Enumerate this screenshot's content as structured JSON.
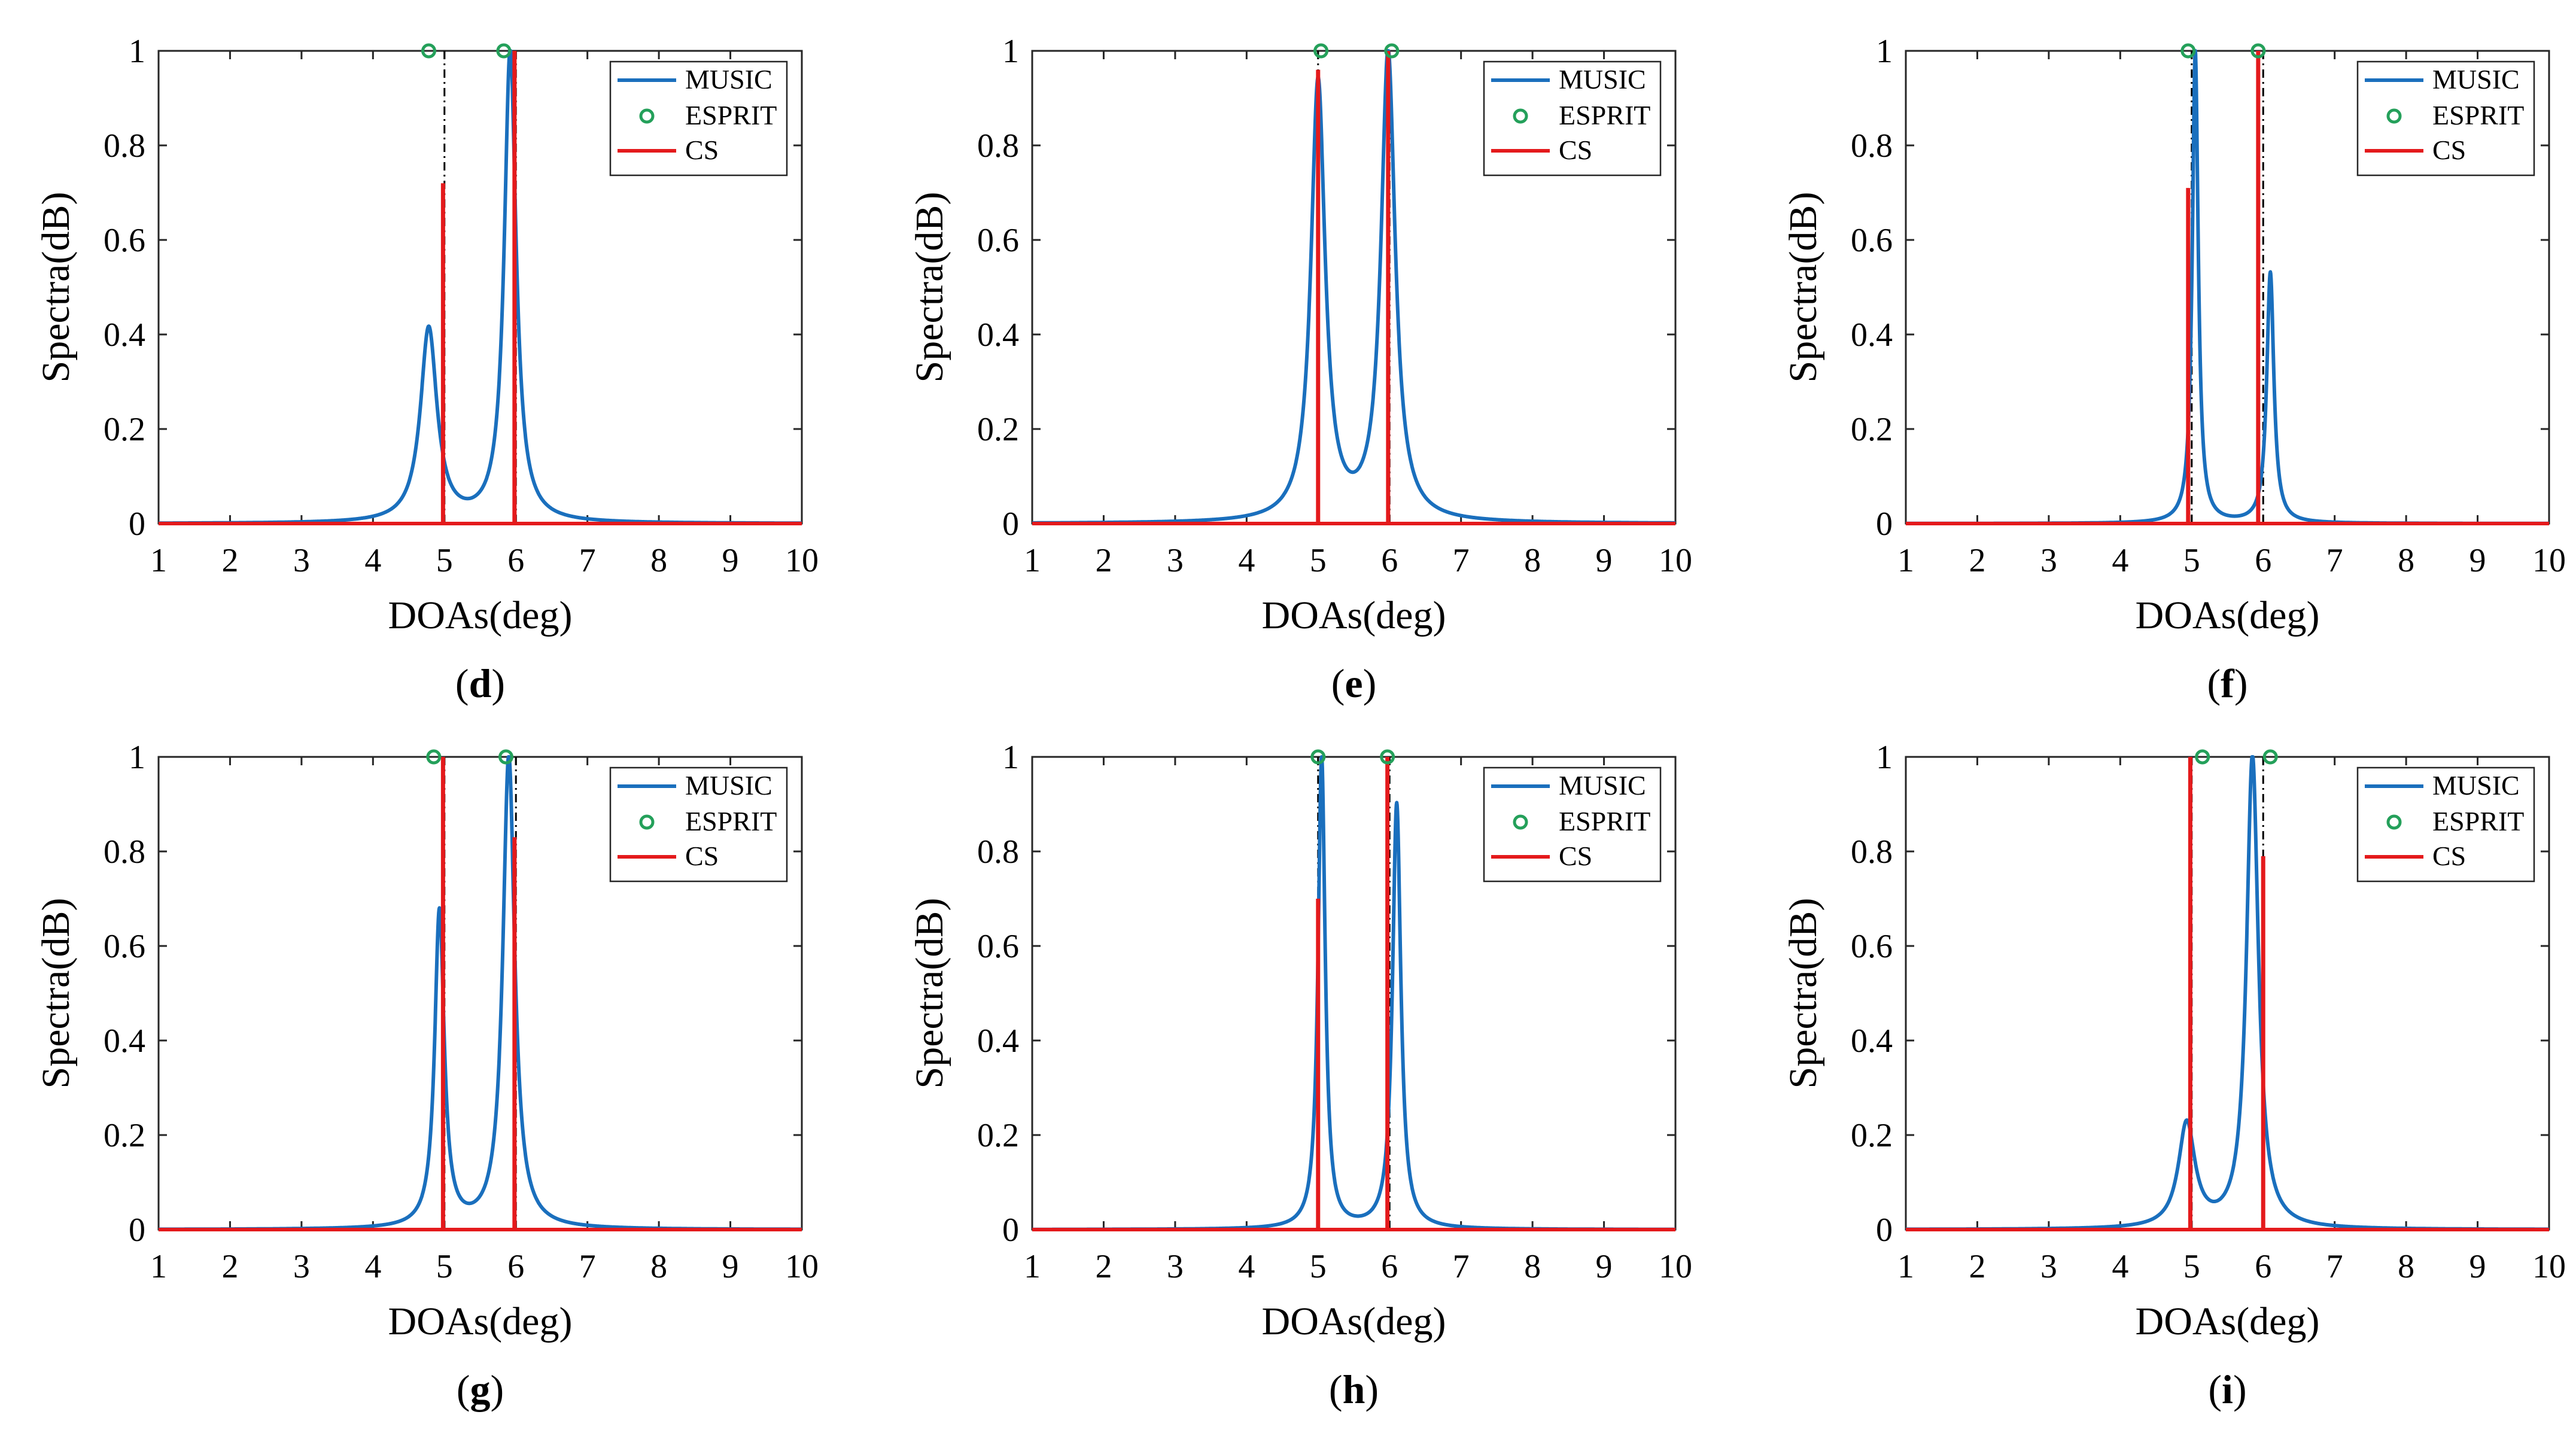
{
  "colors": {
    "music": "#1a6fbd",
    "esprit": "#24a05a",
    "cs": "#e41a1c",
    "axis": "#262626"
  },
  "chart_data": [
    {
      "type": "line",
      "panel_letter": "d",
      "xlabel": "DOAs(deg)",
      "ylabel": "Spectra(dB)",
      "xlim": [
        1,
        10
      ],
      "ylim": [
        0,
        1
      ],
      "xticks": [
        "1",
        "2",
        "3",
        "4",
        "5",
        "6",
        "7",
        "8",
        "9",
        "10"
      ],
      "yticks": [
        "0",
        "0.2",
        "0.4",
        "0.6",
        "0.8",
        "1"
      ],
      "legend": [
        "MUSIC",
        "ESPRIT",
        "CS"
      ],
      "legend_position": "top-right",
      "true_doas": [
        5.0,
        6.0
      ],
      "music_peaks": [
        {
          "x": 4.78,
          "y": 0.41,
          "w": 0.14
        },
        {
          "x": 5.92,
          "y": 1.0,
          "w": 0.1
        }
      ],
      "esprit_points": [
        4.78,
        5.83
      ],
      "cs_stems": [
        {
          "x": 4.98,
          "y": 0.72
        },
        {
          "x": 5.98,
          "y": 1.0
        }
      ]
    },
    {
      "type": "line",
      "panel_letter": "e",
      "xlabel": "DOAs(deg)",
      "ylabel": "Spectra(dB)",
      "xlim": [
        1,
        10
      ],
      "ylim": [
        0,
        1
      ],
      "xticks": [
        "1",
        "2",
        "3",
        "4",
        "5",
        "6",
        "7",
        "8",
        "9",
        "10"
      ],
      "yticks": [
        "0",
        "0.2",
        "0.4",
        "0.6",
        "0.8",
        "1"
      ],
      "legend": [
        "MUSIC",
        "ESPRIT",
        "CS"
      ],
      "legend_position": "top-right",
      "true_doas": [
        5.0,
        6.0
      ],
      "music_peaks": [
        {
          "x": 5.0,
          "y": 0.93,
          "w": 0.12
        },
        {
          "x": 5.98,
          "y": 0.99,
          "w": 0.12
        }
      ],
      "esprit_points": [
        5.04,
        6.03
      ],
      "cs_stems": [
        {
          "x": 5.0,
          "y": 0.96
        },
        {
          "x": 5.98,
          "y": 1.0
        }
      ]
    },
    {
      "type": "line",
      "panel_letter": "f",
      "xlabel": "DOAs(deg)",
      "ylabel": "Spectra(dB)",
      "xlim": [
        1,
        10
      ],
      "ylim": [
        0,
        1
      ],
      "xticks": [
        "1",
        "2",
        "3",
        "4",
        "5",
        "6",
        "7",
        "8",
        "9",
        "10"
      ],
      "yticks": [
        "0",
        "0.2",
        "0.4",
        "0.6",
        "0.8",
        "1"
      ],
      "legend": [
        "MUSIC",
        "ESPRIT",
        "CS"
      ],
      "legend_position": "top-right",
      "true_doas": [
        5.0,
        6.0
      ],
      "music_peaks": [
        {
          "x": 5.05,
          "y": 1.0,
          "w": 0.05
        },
        {
          "x": 6.1,
          "y": 0.53,
          "w": 0.06
        }
      ],
      "esprit_points": [
        4.95,
        5.93
      ],
      "cs_stems": [
        {
          "x": 4.95,
          "y": 0.71
        },
        {
          "x": 5.93,
          "y": 1.0
        }
      ]
    },
    {
      "type": "line",
      "panel_letter": "g",
      "xlabel": "DOAs(deg)",
      "ylabel": "Spectra(dB)",
      "xlim": [
        1,
        10
      ],
      "ylim": [
        0,
        1
      ],
      "xticks": [
        "1",
        "2",
        "3",
        "4",
        "5",
        "6",
        "7",
        "8",
        "9",
        "10"
      ],
      "yticks": [
        "0",
        "0.2",
        "0.4",
        "0.6",
        "0.8",
        "1"
      ],
      "legend": [
        "MUSIC",
        "ESPRIT",
        "CS"
      ],
      "legend_position": "top-right",
      "true_doas": [
        5.0,
        6.0
      ],
      "music_peaks": [
        {
          "x": 4.93,
          "y": 0.67,
          "w": 0.08
        },
        {
          "x": 5.9,
          "y": 1.0,
          "w": 0.1
        }
      ],
      "esprit_points": [
        4.85,
        5.86
      ],
      "cs_stems": [
        {
          "x": 4.98,
          "y": 1.0
        },
        {
          "x": 5.98,
          "y": 0.83
        }
      ]
    },
    {
      "type": "line",
      "panel_letter": "h",
      "xlabel": "DOAs(deg)",
      "ylabel": "Spectra(dB)",
      "xlim": [
        1,
        10
      ],
      "ylim": [
        0,
        1
      ],
      "xticks": [
        "1",
        "2",
        "3",
        "4",
        "5",
        "6",
        "7",
        "8",
        "9",
        "10"
      ],
      "yticks": [
        "0",
        "0.2",
        "0.4",
        "0.6",
        "0.8",
        "1"
      ],
      "legend": [
        "MUSIC",
        "ESPRIT",
        "CS"
      ],
      "legend_position": "top-right",
      "true_doas": [
        5.0,
        6.0
      ],
      "music_peaks": [
        {
          "x": 5.05,
          "y": 1.0,
          "w": 0.06
        },
        {
          "x": 6.1,
          "y": 0.9,
          "w": 0.07
        }
      ],
      "esprit_points": [
        5.0,
        5.97
      ],
      "cs_stems": [
        {
          "x": 5.0,
          "y": 0.7
        },
        {
          "x": 5.97,
          "y": 1.0
        }
      ]
    },
    {
      "type": "line",
      "panel_letter": "i",
      "xlabel": "DOAs(deg)",
      "ylabel": "Spectra(dB)",
      "xlim": [
        1,
        10
      ],
      "ylim": [
        0,
        1
      ],
      "xticks": [
        "1",
        "2",
        "3",
        "4",
        "5",
        "6",
        "7",
        "8",
        "9",
        "10"
      ],
      "yticks": [
        "0",
        "0.2",
        "0.4",
        "0.6",
        "0.8",
        "1"
      ],
      "legend": [
        "MUSIC",
        "ESPRIT",
        "CS"
      ],
      "legend_position": "top-right",
      "true_doas": [
        5.0,
        6.0
      ],
      "music_peaks": [
        {
          "x": 4.93,
          "y": 0.22,
          "w": 0.14
        },
        {
          "x": 5.85,
          "y": 1.0,
          "w": 0.1
        }
      ],
      "esprit_points": [
        5.15,
        6.1
      ],
      "cs_stems": [
        {
          "x": 4.98,
          "y": 1.0
        },
        {
          "x": 6.0,
          "y": 0.79
        }
      ]
    }
  ]
}
